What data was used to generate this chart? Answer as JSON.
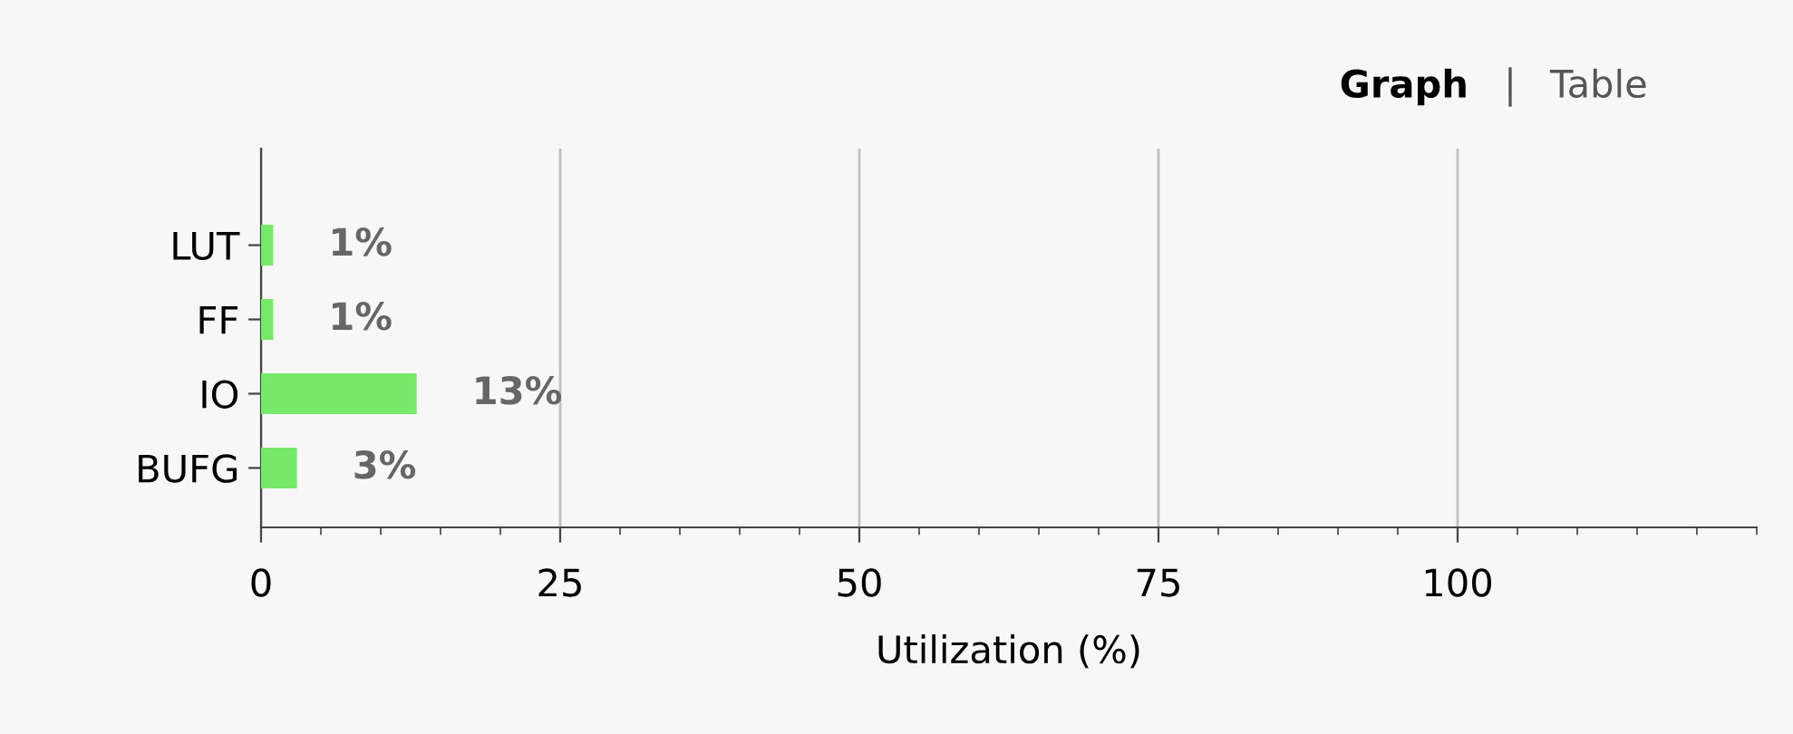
{
  "chart_data": {
    "type": "bar",
    "orientation": "horizontal",
    "xlabel": "Utilization (%)",
    "categories": [
      "LUT",
      "FF",
      "IO",
      "BUFG"
    ],
    "values": [
      1,
      1,
      13,
      3
    ],
    "value_labels": [
      "1%",
      "1%",
      "13%",
      "3%"
    ],
    "color": "#77e86a",
    "xlim": [
      0,
      125
    ],
    "xticks": [
      0,
      25,
      50,
      75,
      100
    ],
    "grid": "x",
    "annotations": [
      "Graph",
      "Table"
    ]
  }
}
